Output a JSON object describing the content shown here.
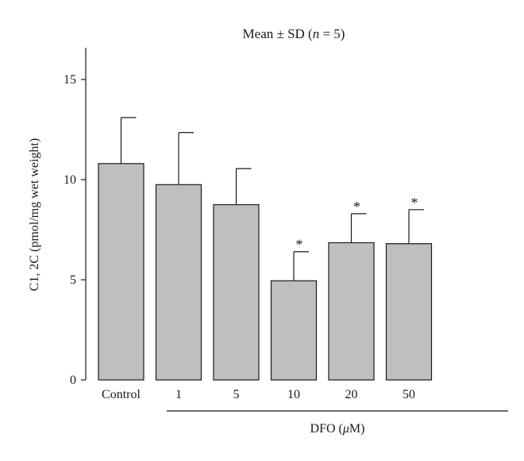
{
  "chart_data": {
    "type": "bar",
    "title": "Mean ± SD (n = 5)",
    "title_prefix": "Mean ± SD (",
    "title_italic": "n",
    "title_suffix": " = 5)",
    "categories": [
      "Control",
      "1",
      "5",
      "10",
      "20",
      "50"
    ],
    "values": [
      10.8,
      9.75,
      8.75,
      4.95,
      6.85,
      6.8
    ],
    "error_sd": [
      2.3,
      2.6,
      1.8,
      1.45,
      1.45,
      1.7
    ],
    "significance": [
      "",
      "",
      "",
      "*",
      "*",
      "*"
    ],
    "ylabel": "C1, 2C (pmol/mg wet weight)",
    "xlabel": "DFO (μM)",
    "xlabel_prefix": "DFO (",
    "xlabel_italic": "μ",
    "xlabel_suffix": "M)",
    "ylim": [
      0,
      16
    ],
    "yticks": [
      0,
      5,
      10,
      15
    ],
    "grid": false,
    "colors": {
      "bar_fill": "#bfbfbf",
      "bar_stroke": "#1a1a1a"
    }
  }
}
